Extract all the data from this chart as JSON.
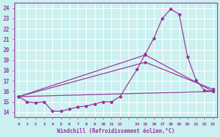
{
  "xlabel": "Windchill (Refroidissement éolien,°C)",
  "background_color": "#caf0f0",
  "grid_color": "#ffffff",
  "line_color": "#993399",
  "ylim": [
    13.5,
    24.5
  ],
  "yticks": [
    14,
    15,
    16,
    17,
    18,
    19,
    20,
    21,
    22,
    23,
    24
  ],
  "x_labels": [
    "0",
    "1",
    "2",
    "3",
    "4",
    "5",
    "6",
    "7",
    "8",
    "9",
    "10",
    "11",
    "12",
    "",
    "14",
    "15",
    "16",
    "17",
    "18",
    "19",
    "20",
    "21",
    "22",
    "23"
  ],
  "series": [
    {
      "xi": [
        0,
        1,
        2,
        3,
        4,
        5,
        6,
        7,
        8,
        9,
        10,
        11,
        12,
        14,
        15,
        16,
        17,
        18,
        19,
        20,
        21,
        22,
        23
      ],
      "y": [
        15.5,
        15.0,
        14.9,
        15.0,
        14.1,
        14.1,
        14.3,
        14.5,
        14.6,
        14.8,
        15.0,
        15.0,
        15.5,
        18.1,
        19.6,
        21.1,
        23.0,
        23.9,
        23.4,
        19.3,
        17.1,
        16.1,
        16.0
      ]
    },
    {
      "xi": [
        0,
        23
      ],
      "y": [
        15.5,
        16.0
      ]
    },
    {
      "xi": [
        0,
        15,
        23
      ],
      "y": [
        15.5,
        19.5,
        16.0
      ]
    },
    {
      "xi": [
        0,
        15,
        23
      ],
      "y": [
        15.5,
        18.8,
        16.2
      ]
    }
  ]
}
